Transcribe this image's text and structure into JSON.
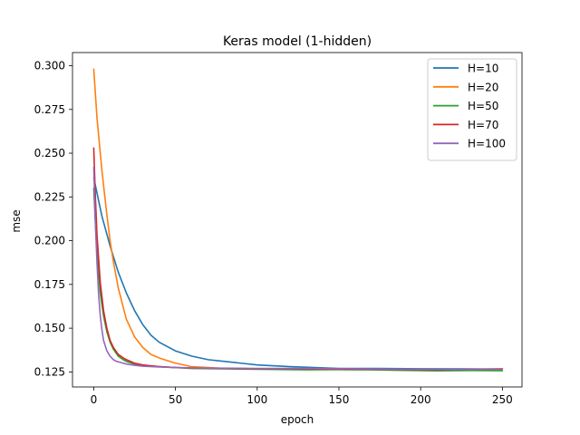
{
  "chart_data": {
    "type": "line",
    "title": "Keras model (1-hidden)",
    "xlabel": "epoch",
    "ylabel": "mse",
    "xlim": [
      -13,
      262
    ],
    "ylim": [
      0.1164,
      0.3075
    ],
    "x_ticks": [
      0,
      50,
      100,
      150,
      200,
      250
    ],
    "y_ticks": [
      0.125,
      0.15,
      0.175,
      0.2,
      0.225,
      0.25,
      0.275,
      0.3
    ],
    "grid": false,
    "legend": "top-right",
    "series": [
      {
        "name": "H=10",
        "color": "#1f77b4",
        "x": [
          0,
          5,
          10,
          15,
          20,
          25,
          30,
          35,
          40,
          50,
          60,
          70,
          80,
          90,
          100,
          120,
          150,
          175,
          200,
          225,
          250
        ],
        "values": [
          0.236,
          0.214,
          0.197,
          0.182,
          0.17,
          0.16,
          0.152,
          0.146,
          0.142,
          0.137,
          0.134,
          0.132,
          0.131,
          0.13,
          0.129,
          0.128,
          0.127,
          0.127,
          0.1268,
          0.1267,
          0.1266
        ]
      },
      {
        "name": "H=20",
        "color": "#ff7f0e",
        "x": [
          0,
          2,
          5,
          8,
          10,
          12,
          15,
          18,
          20,
          25,
          30,
          35,
          40,
          50,
          60,
          70,
          80,
          100,
          150,
          200,
          250
        ],
        "values": [
          0.298,
          0.27,
          0.24,
          0.215,
          0.2,
          0.188,
          0.173,
          0.162,
          0.155,
          0.145,
          0.139,
          0.135,
          0.133,
          0.13,
          0.128,
          0.1275,
          0.127,
          0.1268,
          0.1265,
          0.1262,
          0.1264
        ]
      },
      {
        "name": "H=50",
        "color": "#2ca02c",
        "x": [
          0,
          1,
          2,
          4,
          6,
          8,
          10,
          12,
          15,
          18,
          20,
          25,
          30,
          40,
          50,
          60,
          80,
          100,
          130,
          150,
          170,
          190,
          210,
          230,
          250
        ],
        "values": [
          0.23,
          0.21,
          0.193,
          0.17,
          0.157,
          0.148,
          0.142,
          0.138,
          0.134,
          0.132,
          0.131,
          0.1295,
          0.1285,
          0.128,
          0.1275,
          0.127,
          0.1268,
          0.1265,
          0.1262,
          0.1263,
          0.1262,
          0.1259,
          0.1256,
          0.1258,
          0.1257
        ]
      },
      {
        "name": "H=70",
        "color": "#d62728",
        "x": [
          0,
          1,
          2,
          4,
          6,
          8,
          10,
          12,
          15,
          18,
          20,
          25,
          30,
          40,
          50,
          60,
          80,
          100,
          130,
          150,
          180,
          210,
          230,
          250
        ],
        "values": [
          0.253,
          0.225,
          0.203,
          0.176,
          0.16,
          0.15,
          0.143,
          0.139,
          0.135,
          0.133,
          0.132,
          0.13,
          0.129,
          0.128,
          0.1275,
          0.1272,
          0.127,
          0.1268,
          0.1268,
          0.1266,
          0.1265,
          0.1262,
          0.1265,
          0.1268
        ]
      },
      {
        "name": "H=100",
        "color": "#9467bd",
        "x": [
          0,
          1,
          2,
          3,
          4,
          5,
          6,
          8,
          10,
          12,
          14,
          16,
          20,
          25,
          30,
          40,
          50,
          70,
          100,
          130,
          160,
          190,
          220,
          250
        ],
        "values": [
          0.242,
          0.21,
          0.187,
          0.169,
          0.157,
          0.149,
          0.143,
          0.137,
          0.134,
          0.132,
          0.131,
          0.1305,
          0.1295,
          0.1288,
          0.1283,
          0.1278,
          0.1275,
          0.1272,
          0.127,
          0.127,
          0.1268,
          0.1266,
          0.1264,
          0.1266
        ]
      }
    ]
  }
}
